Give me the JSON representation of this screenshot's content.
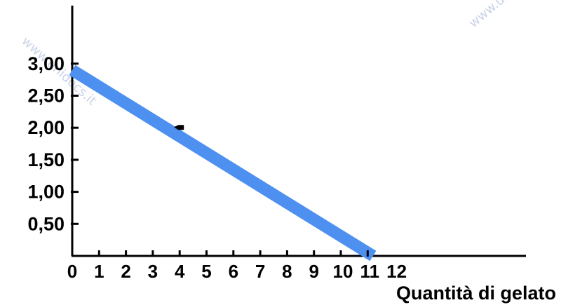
{
  "chart_data": {
    "type": "line",
    "title": "",
    "xlabel": "Quantità di gelato",
    "ylabel": "",
    "xlim": [
      0,
      12
    ],
    "ylim": [
      0,
      3.5
    ],
    "x_ticks": [
      "0",
      "1",
      "2",
      "3",
      "4",
      "5",
      "6",
      "7",
      "8",
      "9",
      "10",
      "11",
      "12"
    ],
    "y_ticks": [
      "0,50",
      "1,00",
      "1,50",
      "2,00",
      "2,50",
      "3,00"
    ],
    "y_tick_values": [
      0.5,
      1.0,
      1.5,
      2.0,
      2.5,
      3.0
    ],
    "grid": false,
    "legend": "none",
    "series": [
      {
        "x": [
          0,
          11.2
        ],
        "y": [
          2.9,
          0
        ],
        "color": "#4d90f0"
      }
    ],
    "points": [
      {
        "x": 4,
        "y": 2.0,
        "color": "#000000"
      }
    ]
  },
  "watermark": {
    "text": "www.unidocs.it"
  }
}
